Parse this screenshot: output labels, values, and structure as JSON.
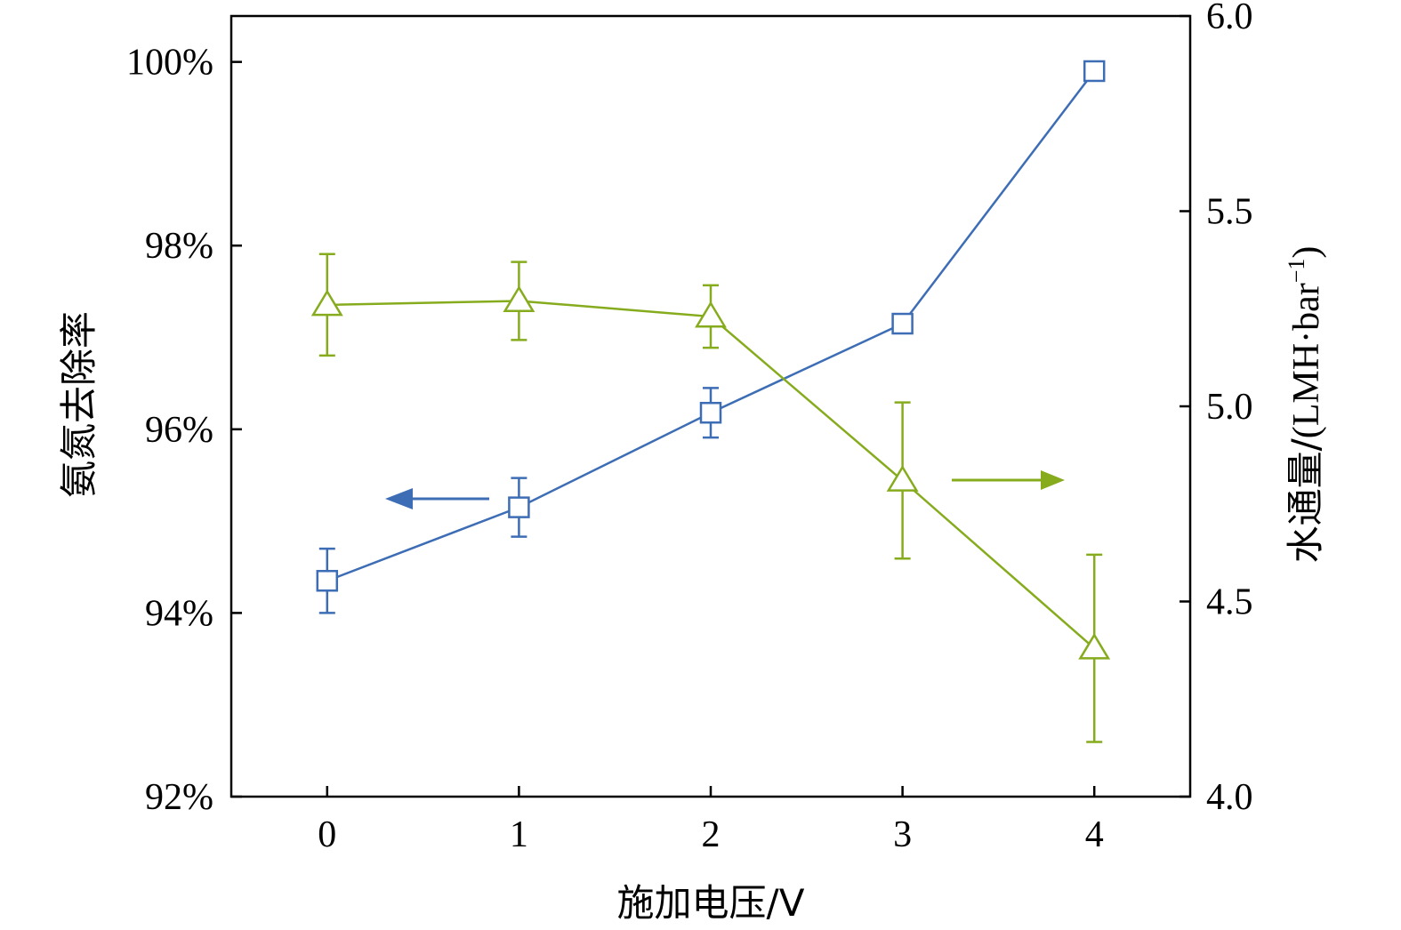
{
  "chart_data": {
    "type": "line",
    "xlabel": "施加电压/V",
    "ylabel_left": "氨氮去除率",
    "ylabel_right_cjk": "水通量/",
    "ylabel_right_unit": "(LMH·bar",
    "ylabel_right_sup": "−1",
    "ylabel_right_close": ")",
    "x": [
      0,
      1,
      2,
      3,
      4
    ],
    "x_tick_labels": [
      "0",
      "1",
      "2",
      "3",
      "4"
    ],
    "xlim": [
      -0.5,
      4.5
    ],
    "y_left_lim": [
      92,
      100.5
    ],
    "y_left_ticks": [
      92,
      94,
      96,
      98,
      100
    ],
    "y_left_tick_labels": [
      "92%",
      "94%",
      "96%",
      "98%",
      "100%"
    ],
    "y_right_lim": [
      4.0,
      6.0
    ],
    "y_right_ticks": [
      4.0,
      4.5,
      5.0,
      5.5,
      6.0
    ],
    "y_right_tick_labels": [
      "4.0",
      "4.5",
      "5.0",
      "5.5",
      "6.0"
    ],
    "grid": false,
    "series": [
      {
        "axis": "left",
        "marker": "square",
        "color": "#3d6db5",
        "values": [
          94.35,
          95.15,
          96.18,
          97.15,
          99.9
        ],
        "errors": [
          0.35,
          0.32,
          0.27,
          0.05,
          0.08
        ],
        "arrow_direction": "left"
      },
      {
        "axis": "right",
        "marker": "triangle",
        "color": "#86ac1e",
        "values": [
          5.26,
          5.27,
          5.23,
          4.81,
          4.38
        ],
        "errors": [
          0.13,
          0.1,
          0.08,
          0.2,
          0.24
        ],
        "arrow_direction": "right"
      }
    ]
  }
}
